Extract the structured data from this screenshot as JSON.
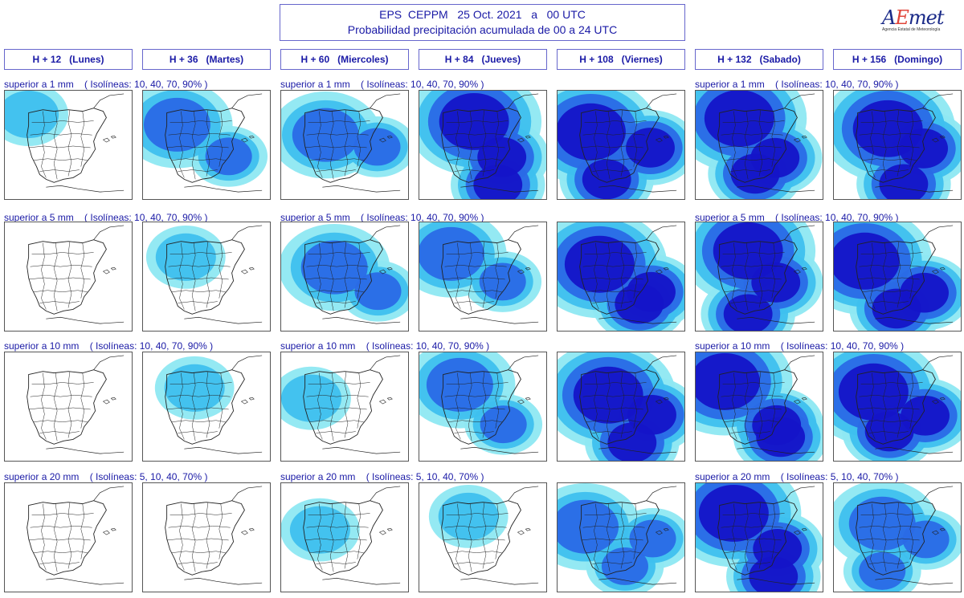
{
  "header": {
    "title_line1": "EPS  CEPPM   25 Oct. 2021   a   00 UTC",
    "title_line2": "Probabilidad precipitación acumulada de 00 a 24 UTC"
  },
  "logo": {
    "brand_a": "A",
    "brand_e": "E",
    "brand_rest": "met",
    "subtitle": "Agencia Estatal de Meteorología"
  },
  "columns": [
    {
      "label": "H + 12   (Lunes)"
    },
    {
      "label": "H + 36   (Martes)"
    },
    {
      "label": "H + 60   (Miercoles)"
    },
    {
      "label": "H + 84   (Jueves)"
    },
    {
      "label": "H + 108   (Viernes)"
    },
    {
      "label": "H + 132   (Sabado)"
    },
    {
      "label": "H + 156   (Domingo)"
    }
  ],
  "rows": [
    {
      "label_left": "superior a 1 mm    ( Isolíneas: 10, 40, 70, 90% )",
      "label_mid": "superior a 1 mm    ( Isolíneas: 10, 40, 70, 90% )",
      "label_right": "superior a 1 mm    ( Isolíneas: 10, 40, 70, 90% )"
    },
    {
      "label_left": "superior a 5 mm    ( Isolíneas: 10, 40, 70, 90% )",
      "label_mid": "superior a 5 mm    ( Isolíneas: 10, 40, 70, 90% )",
      "label_right": "superior a 5 mm    ( Isolíneas: 10, 40, 70, 90% )"
    },
    {
      "label_left": "superior a 10 mm    ( Isolíneas: 10, 40, 70, 90% )",
      "label_mid": "superior a 10 mm    ( Isolíneas: 10, 40, 70, 90% )",
      "label_right": "superior a 10 mm    ( Isolíneas: 10, 40, 70, 90% )"
    },
    {
      "label_left": "superior a 20 mm    ( Isolíneas: 5, 10, 40, 70% )",
      "label_mid": "superior a 20 mm    ( Isolíneas: 5, 10, 40, 70% )",
      "label_right": "superior a 20 mm    ( Isolíneas: 5, 10, 40, 70% )"
    }
  ],
  "colors": {
    "p10": "#8ee8f2",
    "p40": "#3ec0ee",
    "p70": "#2a6ae6",
    "p90": "#1414c8",
    "land_border": "#222222"
  },
  "chart_data": {
    "type": "heatmap",
    "note_levels": "coverage 0-3 per panel (0 none, 1 light, 2 moderate, 3 strong)",
    "matrix": [
      [
        1,
        2,
        2,
        3,
        3,
        3,
        3
      ],
      [
        0,
        1,
        2,
        2,
        3,
        3,
        3
      ],
      [
        0,
        1,
        1,
        2,
        3,
        3,
        3
      ],
      [
        0,
        0,
        1,
        1,
        2,
        3,
        2
      ]
    ]
  }
}
